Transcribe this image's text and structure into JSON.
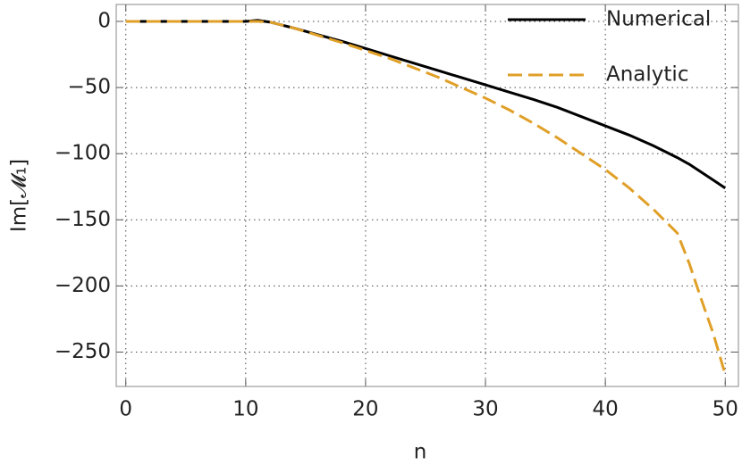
{
  "chart_data": {
    "type": "line",
    "xlabel": "n",
    "ylabel": "Im[𝓜₁]",
    "x": [
      0,
      2,
      4,
      6,
      8,
      10,
      11,
      12,
      14,
      16,
      18,
      20,
      22,
      24,
      26,
      28,
      30,
      32,
      34,
      36,
      38,
      40,
      42,
      44,
      46,
      47,
      48,
      49,
      50
    ],
    "series": [
      {
        "name": "Numerical",
        "color": "#000000",
        "dash": false,
        "values": [
          0,
          0,
          0,
          0,
          0,
          0,
          0.8,
          -0.5,
          -5,
          -10,
          -15,
          -20.5,
          -26,
          -31.5,
          -37,
          -42.5,
          -48,
          -53.5,
          -59,
          -65,
          -72,
          -79,
          -86,
          -94,
          -103,
          -108,
          -114,
          -120,
          -126
        ]
      },
      {
        "name": "Analytic",
        "color": "#e0a028",
        "dash": true,
        "values": [
          0,
          0,
          0,
          0,
          0,
          0,
          0,
          -0.5,
          -5,
          -10.5,
          -16,
          -22,
          -28,
          -35,
          -42,
          -50,
          -58,
          -67,
          -77,
          -88,
          -100,
          -112,
          -126,
          -142,
          -160,
          -183,
          -210,
          -236,
          -267
        ]
      }
    ],
    "xlim": [
      -0.8,
      51.1
    ],
    "ylim": [
      -276,
      12.8
    ],
    "xticks": [
      0,
      10,
      20,
      30,
      40,
      50
    ],
    "yticks": [
      0,
      {
        "value": -50,
        "label": "−50"
      },
      {
        "value": -100,
        "label": "−100"
      },
      {
        "value": -150,
        "label": "−150"
      },
      {
        "value": -200,
        "label": "−200"
      },
      {
        "value": -250,
        "label": "−250"
      }
    ],
    "grid": true,
    "legend": "upper right"
  }
}
